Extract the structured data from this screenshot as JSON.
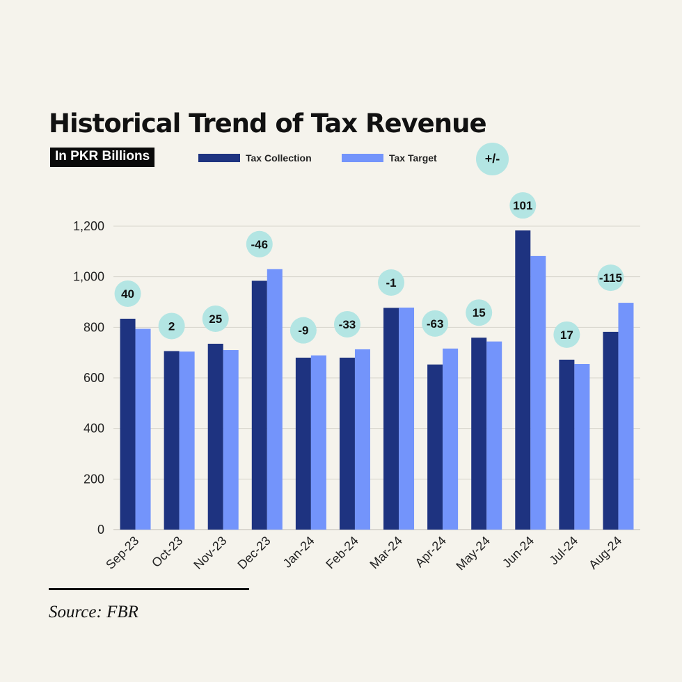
{
  "title": "Historical Trend of Tax Revenue",
  "subtitle": "In PKR Billions",
  "legend": {
    "collection_label": "Tax Collection",
    "target_label": "Tax Target",
    "diff_label": "+/-"
  },
  "source": "Source: FBR",
  "colors": {
    "collection": "#1e3380",
    "target": "#7394fb",
    "diff_badge": "#b3e5e3",
    "grid": "#d6d4cd",
    "axis_text": "#222222"
  },
  "chart_data": {
    "type": "bar",
    "categories": [
      "Sep-23",
      "Oct-23",
      "Nov-23",
      "Dec-23",
      "Jan-24",
      "Feb-24",
      "Mar-24",
      "Apr-24",
      "May-24",
      "Jun-24",
      "Jul-24",
      "Aug-24"
    ],
    "series": [
      {
        "name": "Tax Collection",
        "values": [
          834,
          706,
          735,
          984,
          680,
          680,
          877,
          653,
          759,
          1183,
          672,
          782
        ]
      },
      {
        "name": "Tax Target",
        "values": [
          794,
          704,
          710,
          1030,
          689,
          713,
          878,
          716,
          744,
          1082,
          655,
          897
        ]
      }
    ],
    "differences": [
      "40",
      "2",
      "25",
      "-46",
      "-9",
      "-33",
      "-1",
      "-63",
      "15",
      "101",
      "17",
      "-115"
    ],
    "ylim": [
      0,
      1200
    ],
    "yticks": [
      0,
      200,
      400,
      600,
      800,
      1000,
      1200
    ],
    "ytick_labels": [
      "0",
      "200",
      "400",
      "600",
      "800",
      "1,000",
      "1,200"
    ],
    "grid": true
  }
}
